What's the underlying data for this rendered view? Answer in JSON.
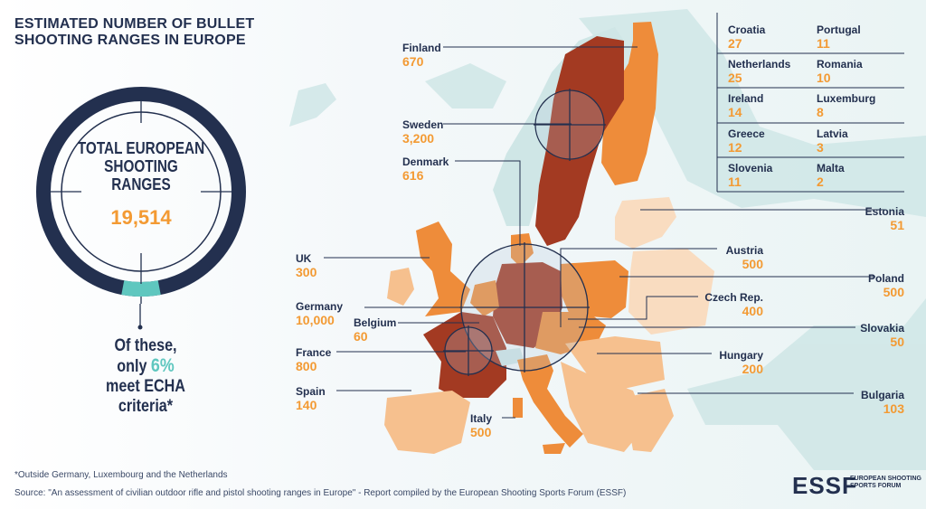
{
  "title": "ESTIMATED NUMBER OF BULLET SHOOTING RANGES IN EUROPE",
  "total": {
    "label_lines": [
      "TOTAL EUROPEAN",
      "SHOOTING",
      "RANGES"
    ],
    "value": "19,514",
    "compliant_fraction": 0.06
  },
  "criteria": {
    "line1": "Of these,",
    "line2_prefix": "only ",
    "pct": "6%",
    "line3": "meet ECHA",
    "line4": "criteria*"
  },
  "countries": {
    "finland": {
      "name": "Finland",
      "value": "670"
    },
    "sweden": {
      "name": "Sweden",
      "value": "3,200"
    },
    "denmark": {
      "name": "Denmark",
      "value": "616"
    },
    "uk": {
      "name": "UK",
      "value": "300"
    },
    "germany": {
      "name": "Germany",
      "value": "10,000"
    },
    "belgium": {
      "name": "Belgium",
      "value": "60"
    },
    "france": {
      "name": "France",
      "value": "800"
    },
    "spain": {
      "name": "Spain",
      "value": "140"
    },
    "italy": {
      "name": "Italy",
      "value": "500"
    },
    "estonia": {
      "name": "Estonia",
      "value": "51"
    },
    "austria": {
      "name": "Austria",
      "value": "500"
    },
    "poland": {
      "name": "Poland",
      "value": "500"
    },
    "czech": {
      "name": "Czech Rep.",
      "value": "400"
    },
    "slovakia": {
      "name": "Slovakia",
      "value": "50"
    },
    "hungary": {
      "name": "Hungary",
      "value": "200"
    },
    "bulgaria": {
      "name": "Bulgaria",
      "value": "103"
    }
  },
  "grid": [
    {
      "name": "Croatia",
      "value": "27"
    },
    {
      "name": "Portugal",
      "value": "11"
    },
    {
      "name": "Netherlands",
      "value": "25"
    },
    {
      "name": "Romania",
      "value": "10"
    },
    {
      "name": "Ireland",
      "value": "14"
    },
    {
      "name": "Luxemburg",
      "value": "8"
    },
    {
      "name": "Greece",
      "value": "12"
    },
    {
      "name": "Latvia",
      "value": "3"
    },
    {
      "name": "Slovenia",
      "value": "11"
    },
    {
      "name": "Malta",
      "value": "2"
    }
  ],
  "footnote": "*Outside Germany, Luxembourg and the Netherlands",
  "source": "Source: \"An assessment of civilian outdoor rifle and pistol shooting ranges in Europe\" -  Report compiled by the European Shooting Sports Forum (ESSF)",
  "logo": {
    "mark": "ESSF",
    "text": "EUROPEAN SHOOTING SPORTS FORUM"
  },
  "colors": {
    "navy": "#23304f",
    "orange": "#f39a33",
    "dark_red": "#a33a22",
    "mid_orange": "#ee8c3a",
    "light_orange": "#f6c08e",
    "pale_orange": "#f9dcc0",
    "teal": "#5fc7bf",
    "land_grey": "#cfe6e6"
  }
}
